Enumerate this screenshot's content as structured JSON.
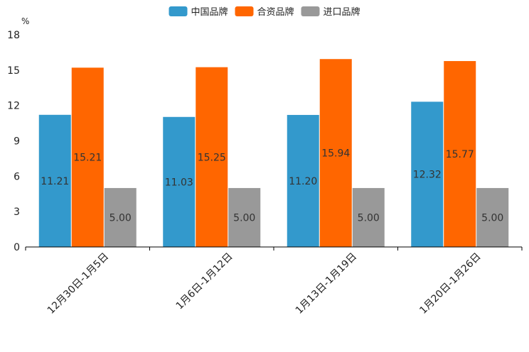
{
  "chart_data": {
    "type": "bar",
    "title": "",
    "xlabel": "",
    "ylabel": "%",
    "ylim": [
      0,
      18
    ],
    "yticks": [
      0,
      3,
      6,
      9,
      12,
      15,
      18
    ],
    "grid": false,
    "legend": "top-center",
    "categories": [
      "12月30日-1月5日",
      "1月6日-1月12日",
      "1月13日-1月19日",
      "1月20日-1月26日"
    ],
    "series": [
      {
        "name": "中国品牌",
        "color": "#3399cc",
        "values": [
          11.21,
          11.03,
          11.2,
          12.32
        ],
        "labels": [
          "11.21",
          "11.03",
          "11.20",
          "12.32"
        ]
      },
      {
        "name": "合资品牌",
        "color": "#ff6600",
        "values": [
          15.21,
          15.25,
          15.94,
          15.77
        ],
        "labels": [
          "15.21",
          "15.25",
          "15.94",
          "15.77"
        ]
      },
      {
        "name": "进口品牌",
        "color": "#999999",
        "values": [
          5.0,
          5.0,
          5.0,
          5.0
        ],
        "labels": [
          "5.00",
          "5.00",
          "5.00",
          "5.00"
        ]
      }
    ]
  }
}
